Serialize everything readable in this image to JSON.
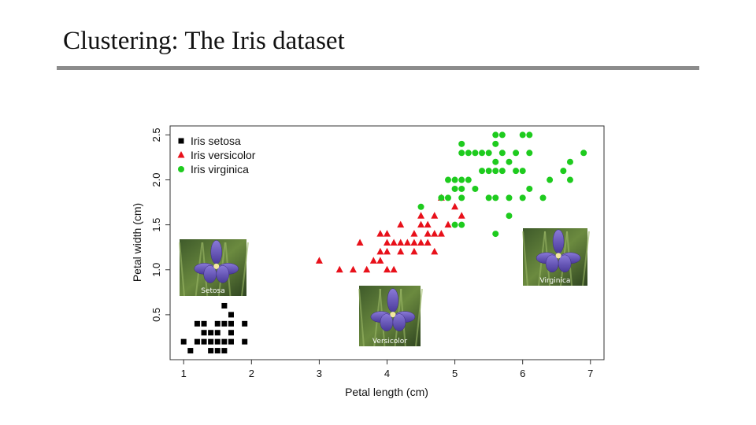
{
  "slide": {
    "title": "Clustering: The Iris dataset"
  },
  "chart_data": {
    "type": "scatter",
    "title": "",
    "xlabel": "Petal length (cm)",
    "ylabel": "Petal width (cm)",
    "xlim": [
      0.8,
      7.2
    ],
    "ylim": [
      0.0,
      2.6
    ],
    "xticks": [
      1,
      2,
      3,
      4,
      5,
      6,
      7
    ],
    "yticks": [
      0.5,
      1.0,
      1.5,
      2.0,
      2.5
    ],
    "ytick_labels": [
      "0.5",
      "1.0",
      "1.5",
      "2.0",
      "2.5"
    ],
    "grid": false,
    "legend_position": "top-left",
    "series": [
      {
        "name": "Iris setosa",
        "marker": "square",
        "color": "#000000",
        "points": [
          [
            1.0,
            0.2
          ],
          [
            1.1,
            0.1
          ],
          [
            1.2,
            0.2
          ],
          [
            1.3,
            0.2
          ],
          [
            1.3,
            0.3
          ],
          [
            1.3,
            0.4
          ],
          [
            1.4,
            0.2
          ],
          [
            1.4,
            0.3
          ],
          [
            1.4,
            0.1
          ],
          [
            1.5,
            0.2
          ],
          [
            1.5,
            0.4
          ],
          [
            1.5,
            0.1
          ],
          [
            1.5,
            0.3
          ],
          [
            1.6,
            0.2
          ],
          [
            1.6,
            0.4
          ],
          [
            1.6,
            0.6
          ],
          [
            1.6,
            0.1
          ],
          [
            1.7,
            0.2
          ],
          [
            1.7,
            0.3
          ],
          [
            1.7,
            0.5
          ],
          [
            1.7,
            0.4
          ],
          [
            1.9,
            0.2
          ],
          [
            1.9,
            0.4
          ],
          [
            1.2,
            0.4
          ]
        ]
      },
      {
        "name": "Iris versicolor",
        "marker": "triangle",
        "color": "#e8101a",
        "points": [
          [
            3.0,
            1.1
          ],
          [
            3.3,
            1.0
          ],
          [
            3.5,
            1.0
          ],
          [
            3.6,
            1.3
          ],
          [
            3.7,
            1.0
          ],
          [
            3.8,
            1.1
          ],
          [
            3.9,
            1.1
          ],
          [
            3.9,
            1.2
          ],
          [
            3.9,
            1.4
          ],
          [
            4.0,
            1.0
          ],
          [
            4.0,
            1.2
          ],
          [
            4.0,
            1.3
          ],
          [
            4.1,
            1.0
          ],
          [
            4.1,
            1.3
          ],
          [
            4.2,
            1.2
          ],
          [
            4.2,
            1.3
          ],
          [
            4.2,
            1.5
          ],
          [
            4.3,
            1.3
          ],
          [
            4.4,
            1.2
          ],
          [
            4.4,
            1.3
          ],
          [
            4.4,
            1.4
          ],
          [
            4.5,
            1.3
          ],
          [
            4.5,
            1.5
          ],
          [
            4.5,
            1.6
          ],
          [
            4.6,
            1.3
          ],
          [
            4.6,
            1.4
          ],
          [
            4.6,
            1.5
          ],
          [
            4.7,
            1.2
          ],
          [
            4.7,
            1.4
          ],
          [
            4.8,
            1.8
          ],
          [
            4.9,
            1.5
          ],
          [
            5.0,
            1.7
          ],
          [
            5.1,
            1.6
          ],
          [
            4.8,
            1.4
          ],
          [
            4.7,
            1.6
          ],
          [
            4.0,
            1.4
          ]
        ]
      },
      {
        "name": "Iris virginica",
        "marker": "circle",
        "color": "#1ecb1e",
        "points": [
          [
            4.5,
            1.7
          ],
          [
            4.8,
            1.8
          ],
          [
            4.9,
            1.8
          ],
          [
            4.9,
            2.0
          ],
          [
            5.0,
            1.5
          ],
          [
            5.0,
            1.9
          ],
          [
            5.0,
            2.0
          ],
          [
            5.1,
            1.5
          ],
          [
            5.1,
            1.8
          ],
          [
            5.1,
            1.9
          ],
          [
            5.1,
            2.0
          ],
          [
            5.1,
            2.3
          ],
          [
            5.1,
            2.4
          ],
          [
            5.2,
            2.0
          ],
          [
            5.2,
            2.3
          ],
          [
            5.3,
            1.9
          ],
          [
            5.3,
            2.3
          ],
          [
            5.4,
            2.1
          ],
          [
            5.4,
            2.3
          ],
          [
            5.5,
            1.8
          ],
          [
            5.5,
            2.1
          ],
          [
            5.6,
            1.4
          ],
          [
            5.6,
            1.8
          ],
          [
            5.6,
            2.1
          ],
          [
            5.6,
            2.2
          ],
          [
            5.6,
            2.4
          ],
          [
            5.7,
            2.1
          ],
          [
            5.7,
            2.3
          ],
          [
            5.7,
            2.5
          ],
          [
            5.8,
            1.6
          ],
          [
            5.8,
            1.8
          ],
          [
            5.8,
            2.2
          ],
          [
            5.9,
            2.1
          ],
          [
            5.9,
            2.3
          ],
          [
            6.0,
            1.8
          ],
          [
            6.0,
            2.5
          ],
          [
            6.1,
            1.9
          ],
          [
            6.1,
            2.3
          ],
          [
            6.1,
            2.5
          ],
          [
            6.3,
            1.8
          ],
          [
            6.4,
            2.0
          ],
          [
            6.6,
            2.1
          ],
          [
            6.7,
            2.0
          ],
          [
            6.7,
            2.2
          ],
          [
            6.9,
            2.3
          ],
          [
            5.5,
            2.3
          ],
          [
            6.0,
            2.1
          ],
          [
            5.6,
            2.5
          ]
        ]
      }
    ],
    "images": [
      {
        "caption": "Setosa"
      },
      {
        "caption": "Versicolor"
      },
      {
        "caption": "Virginica"
      }
    ]
  }
}
